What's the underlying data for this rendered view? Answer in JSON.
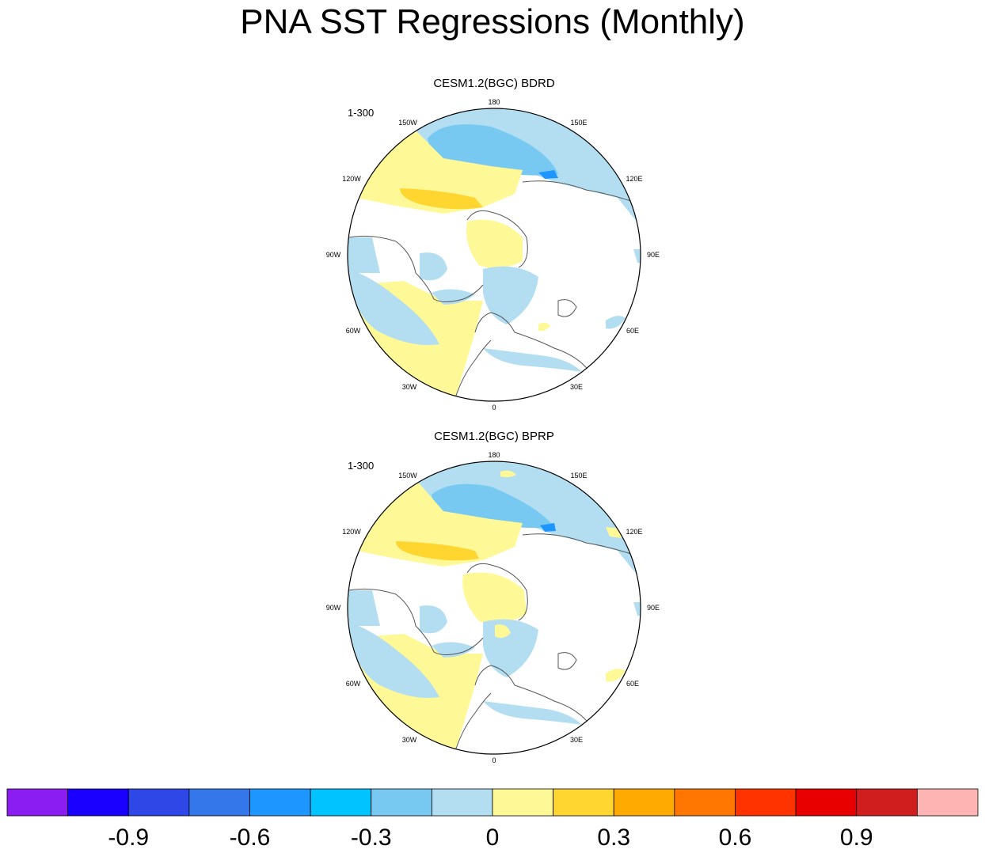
{
  "title": "PNA SST Regressions (Monthly)",
  "panels": [
    {
      "title": "CESM1.2(BGC) BDRD",
      "run": "1-300"
    },
    {
      "title": "CESM1.2(BGC) BPRP",
      "run": "1-300"
    }
  ],
  "longitude_labels": [
    "180",
    "150E",
    "120E",
    "90E",
    "60E",
    "30E",
    "0",
    "30W",
    "60W",
    "90W",
    "120W",
    "150W"
  ],
  "colorbar": {
    "colors": [
      "#8B1CF2",
      "#1A00FF",
      "#2F47E6",
      "#3377EB",
      "#1E96FF",
      "#00C3FF",
      "#78C9F2",
      "#B3DEF2",
      "#FFF896",
      "#FFD630",
      "#FFAA00",
      "#FF7700",
      "#FF3300",
      "#E80000",
      "#D01E1E",
      "#FFB4B4"
    ],
    "tick_labels": [
      "-0.9",
      "-0.6",
      "-0.3",
      "0",
      "0.3",
      "0.6",
      "0.9"
    ]
  }
}
